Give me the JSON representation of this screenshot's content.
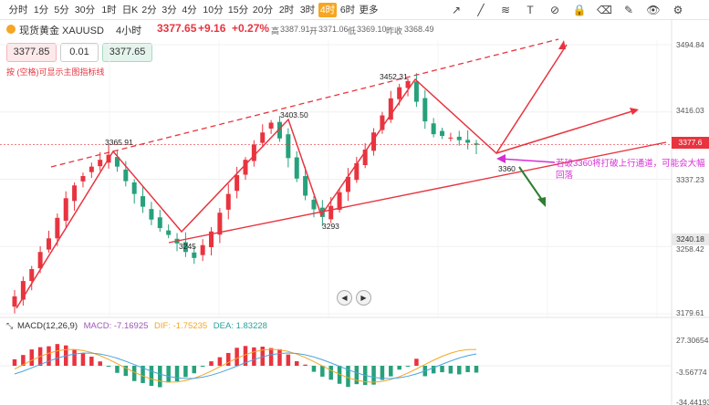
{
  "toolbar": {
    "timeframes": [
      "分时",
      "1分",
      "5分",
      "30分",
      "1时",
      "日K",
      "2分",
      "3分",
      "4分",
      "10分",
      "15分",
      "20分",
      "2时",
      "3时",
      "4时",
      "6时",
      "更多"
    ],
    "active_timeframe": "4时",
    "tools": [
      "draw-arrow-icon",
      "draw-line-icon",
      "draw-channel-icon",
      "draw-text-icon",
      "hide-icon",
      "lock-icon",
      "eraser-icon",
      "edit-icon",
      "eye-icon",
      "settings-icon"
    ]
  },
  "symbol": {
    "name": "现货黄金 XAUUSD",
    "timeframe": "4小时",
    "price": "3377.65",
    "change": "+9.16",
    "change_pct": "+0.27%",
    "high_label": "高",
    "high": "3387.91",
    "open_label": "开",
    "open": "3371.06",
    "low_label": "低",
    "low": "3369.10",
    "prev_label": "昨收",
    "prev": "3368.49"
  },
  "order": {
    "sell_price": "3377.85",
    "quantity": "0.01",
    "buy_price": "3377.65",
    "hint": "按 (空格)可显示主图指标线"
  },
  "price_axis": {
    "ticks": [
      "3494.84",
      "3416.03",
      "3337.23",
      "3258.42",
      "3179.61"
    ],
    "current_price": "3377.6",
    "marker_price": "3240.18"
  },
  "macd_axis": {
    "ticks": [
      "27.30654",
      "-3.56774",
      "-34.44193"
    ]
  },
  "macd": {
    "title": "MACD(12,26,9)",
    "macd_label": "MACD: -7.16925",
    "dif_label": "DIF: -1.75235",
    "dea_label": "DEA: 1.83228"
  },
  "annotations": {
    "swing_labels": [
      "3365.91",
      "3245",
      "3403.50",
      "3293",
      "3452.31",
      "3360"
    ],
    "note_line1": "若破3360将打破上行通道，可能会大幅",
    "note_line2": "回落"
  },
  "colors": {
    "up": "#e8343f",
    "down": "#26a17b",
    "active_tab": "#f5a623",
    "annotation": "#d62fd6",
    "dif_line": "#f5a623",
    "dea_line": "#4aa3df"
  },
  "chart_data": {
    "type": "candlestick",
    "timeframe": "4小时",
    "ylim": [
      3170,
      3500
    ],
    "closes": [
      3200,
      3218,
      3232,
      3252,
      3268,
      3292,
      3315,
      3330,
      3341,
      3352,
      3360,
      3365.91,
      3352,
      3335,
      3320,
      3305,
      3290,
      3280,
      3272,
      3262,
      3252,
      3245,
      3260,
      3276,
      3298,
      3320,
      3342,
      3360,
      3378,
      3392,
      3403.5,
      3385,
      3362,
      3338,
      3318,
      3302,
      3293,
      3306,
      3322,
      3340,
      3356,
      3372,
      3392,
      3412,
      3432,
      3445,
      3452.31,
      3428,
      3405,
      3390,
      3388,
      3386,
      3383,
      3380,
      3377.65
    ],
    "macd_hist_trend": "positive near 3365.91 and 3403.50 and 3452.31 peaks, negative near 3245 and 3293 troughs and at the end"
  }
}
